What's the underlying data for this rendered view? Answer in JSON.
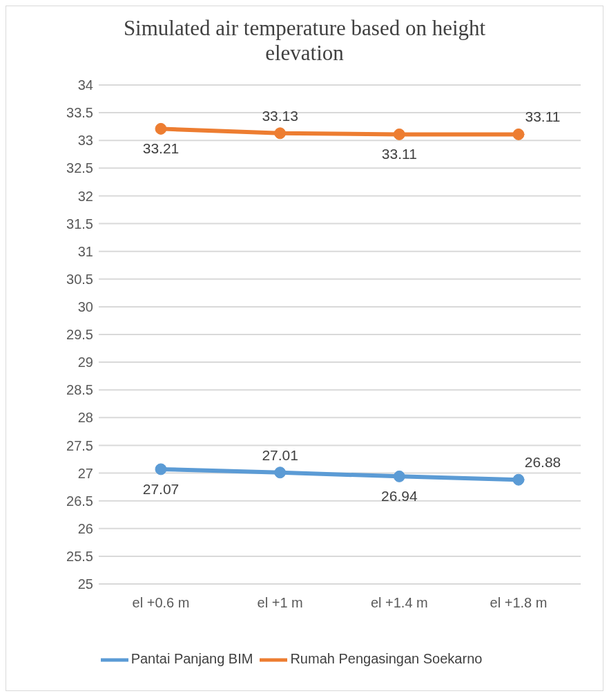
{
  "chart_data": {
    "type": "line",
    "title": "Simulated air temperature based on height elevation",
    "categories": [
      "el +0.6 m",
      "el +1 m",
      "el +1.4 m",
      "el +1.8 m"
    ],
    "series": [
      {
        "name": "Pantai Panjang BIM",
        "color": "#5b9bd5",
        "values": [
          27.07,
          27.01,
          26.94,
          26.88
        ]
      },
      {
        "name": "Rumah Pengasingan Soekarno",
        "color": "#ed7d31",
        "values": [
          33.21,
          33.13,
          33.11,
          33.11
        ]
      }
    ],
    "ylim": [
      25,
      34
    ],
    "yticks": [
      25,
      25.5,
      26,
      26.5,
      27,
      27.5,
      28,
      28.5,
      29,
      29.5,
      30,
      30.5,
      31,
      31.5,
      32,
      32.5,
      33,
      33.5,
      34
    ],
    "grid": "y",
    "legend": "bottom",
    "marker": "circle",
    "line_style": "solid",
    "data_labels": true
  }
}
